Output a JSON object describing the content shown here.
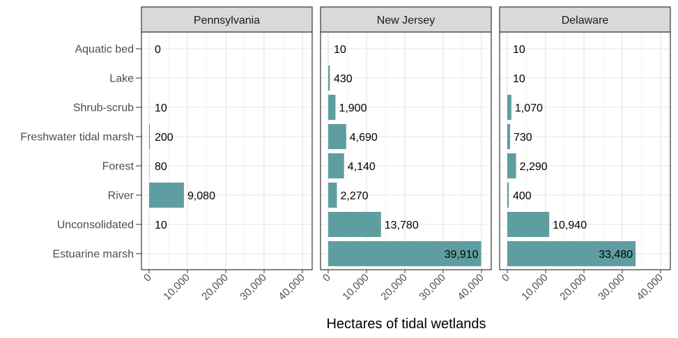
{
  "chart_data": {
    "type": "bar",
    "orientation": "horizontal",
    "xlabel": "Hectares of tidal wetlands",
    "ylabel": "",
    "xlim": [
      0,
      40000
    ],
    "x_ticks": [
      0,
      10000,
      20000,
      30000,
      40000
    ],
    "x_tick_labels": [
      "0",
      "10,000",
      "20,000",
      "30,000",
      "40,000"
    ],
    "grid": true,
    "categories": [
      "Aquatic bed",
      "Lake",
      "Shrub-scrub",
      "Freshwater tidal marsh",
      "Forest",
      "River",
      "Unconsolidated",
      "Estuarine marsh"
    ],
    "bar_color": "#5f9ea0",
    "strip_color": "#d9d9d9",
    "panels": [
      {
        "name": "Pennsylvania",
        "values": [
          0,
          null,
          10,
          200,
          80,
          9080,
          10,
          null
        ],
        "labels": [
          "0",
          "",
          "10",
          "200",
          "80",
          "9,080",
          "10",
          ""
        ]
      },
      {
        "name": "New Jersey",
        "values": [
          10,
          430,
          1900,
          4690,
          4140,
          2270,
          13780,
          39910
        ],
        "labels": [
          "10",
          "430",
          "1,900",
          "4,690",
          "4,140",
          "2,270",
          "13,780",
          "39,910"
        ]
      },
      {
        "name": "Delaware",
        "values": [
          10,
          10,
          1070,
          730,
          2290,
          400,
          10940,
          33480
        ],
        "labels": [
          "10",
          "10",
          "1,070",
          "730",
          "2,290",
          "400",
          "10,940",
          "33,480"
        ]
      }
    ]
  }
}
